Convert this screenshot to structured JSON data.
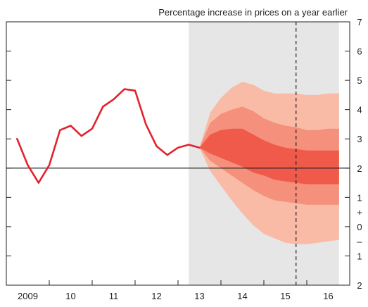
{
  "chart_data": {
    "type": "line",
    "ylabel": "Percentage increase in prices on a year earlier",
    "xlim": [
      2008.5,
      2016.5
    ],
    "ylim": [
      -2,
      7
    ],
    "yticks": [
      -2,
      -1,
      0,
      1,
      2,
      3,
      4,
      5,
      6,
      7
    ],
    "ytick_labels": [
      "2",
      "1",
      "0",
      "1",
      "2",
      "3",
      "4",
      "5",
      "6",
      "7"
    ],
    "y_sign_labels": [
      "+",
      "–"
    ],
    "x_categories": [
      "2009",
      "10",
      "11",
      "12",
      "13",
      "14",
      "15",
      "16"
    ],
    "x_category_centers": [
      2009,
      2010,
      2011,
      2012,
      2013,
      2014,
      2015,
      2016
    ],
    "target_line": 2,
    "marker_line_x": 2015.25,
    "forecast_shading": {
      "x_start": 2012.75,
      "x_end": 2016.25,
      "color": "#e6e6e7"
    },
    "series": [
      {
        "color": "#e2232e",
        "points": [
          [
            2008.75,
            3.0
          ],
          [
            2009.0,
            2.1
          ],
          [
            2009.25,
            1.5
          ],
          [
            2009.5,
            2.1
          ],
          [
            2009.75,
            3.3
          ],
          [
            2010.0,
            3.45
          ],
          [
            2010.25,
            3.1
          ],
          [
            2010.5,
            3.35
          ],
          [
            2010.75,
            4.1
          ],
          [
            2011.0,
            4.35
          ],
          [
            2011.25,
            4.7
          ],
          [
            2011.5,
            4.65
          ],
          [
            2011.75,
            3.5
          ],
          [
            2012.0,
            2.75
          ],
          [
            2012.25,
            2.45
          ],
          [
            2012.5,
            2.7
          ],
          [
            2012.75,
            2.8
          ],
          [
            2013.0,
            2.7
          ]
        ]
      }
    ],
    "fan": {
      "x": [
        2013.0,
        2013.25,
        2013.5,
        2013.75,
        2014.0,
        2014.25,
        2014.5,
        2014.75,
        2015.0,
        2015.25,
        2015.5,
        2015.75,
        2016.0,
        2016.25
      ],
      "bands": [
        {
          "color": "#f9bba5",
          "upper": [
            2.7,
            3.9,
            4.4,
            4.75,
            4.95,
            4.85,
            4.65,
            4.55,
            4.55,
            4.55,
            4.5,
            4.5,
            4.55,
            4.55
          ],
          "lower": [
            2.7,
            1.9,
            1.4,
            0.9,
            0.45,
            0.05,
            -0.25,
            -0.4,
            -0.55,
            -0.6,
            -0.6,
            -0.55,
            -0.5,
            -0.45
          ]
        },
        {
          "color": "#f4907b",
          "upper": [
            2.7,
            3.55,
            3.85,
            4.0,
            4.1,
            3.95,
            3.7,
            3.55,
            3.45,
            3.4,
            3.3,
            3.3,
            3.35,
            3.35
          ],
          "lower": [
            2.7,
            2.25,
            2.0,
            1.75,
            1.5,
            1.25,
            1.05,
            0.9,
            0.85,
            0.8,
            0.75,
            0.75,
            0.75,
            0.75
          ]
        },
        {
          "color": "#ef5a4a",
          "upper": [
            2.7,
            3.15,
            3.3,
            3.35,
            3.35,
            3.15,
            2.95,
            2.8,
            2.7,
            2.65,
            2.6,
            2.6,
            2.6,
            2.6
          ],
          "lower": [
            2.7,
            2.5,
            2.35,
            2.2,
            2.05,
            1.85,
            1.75,
            1.6,
            1.55,
            1.5,
            1.45,
            1.45,
            1.45,
            1.45
          ]
        }
      ]
    }
  }
}
